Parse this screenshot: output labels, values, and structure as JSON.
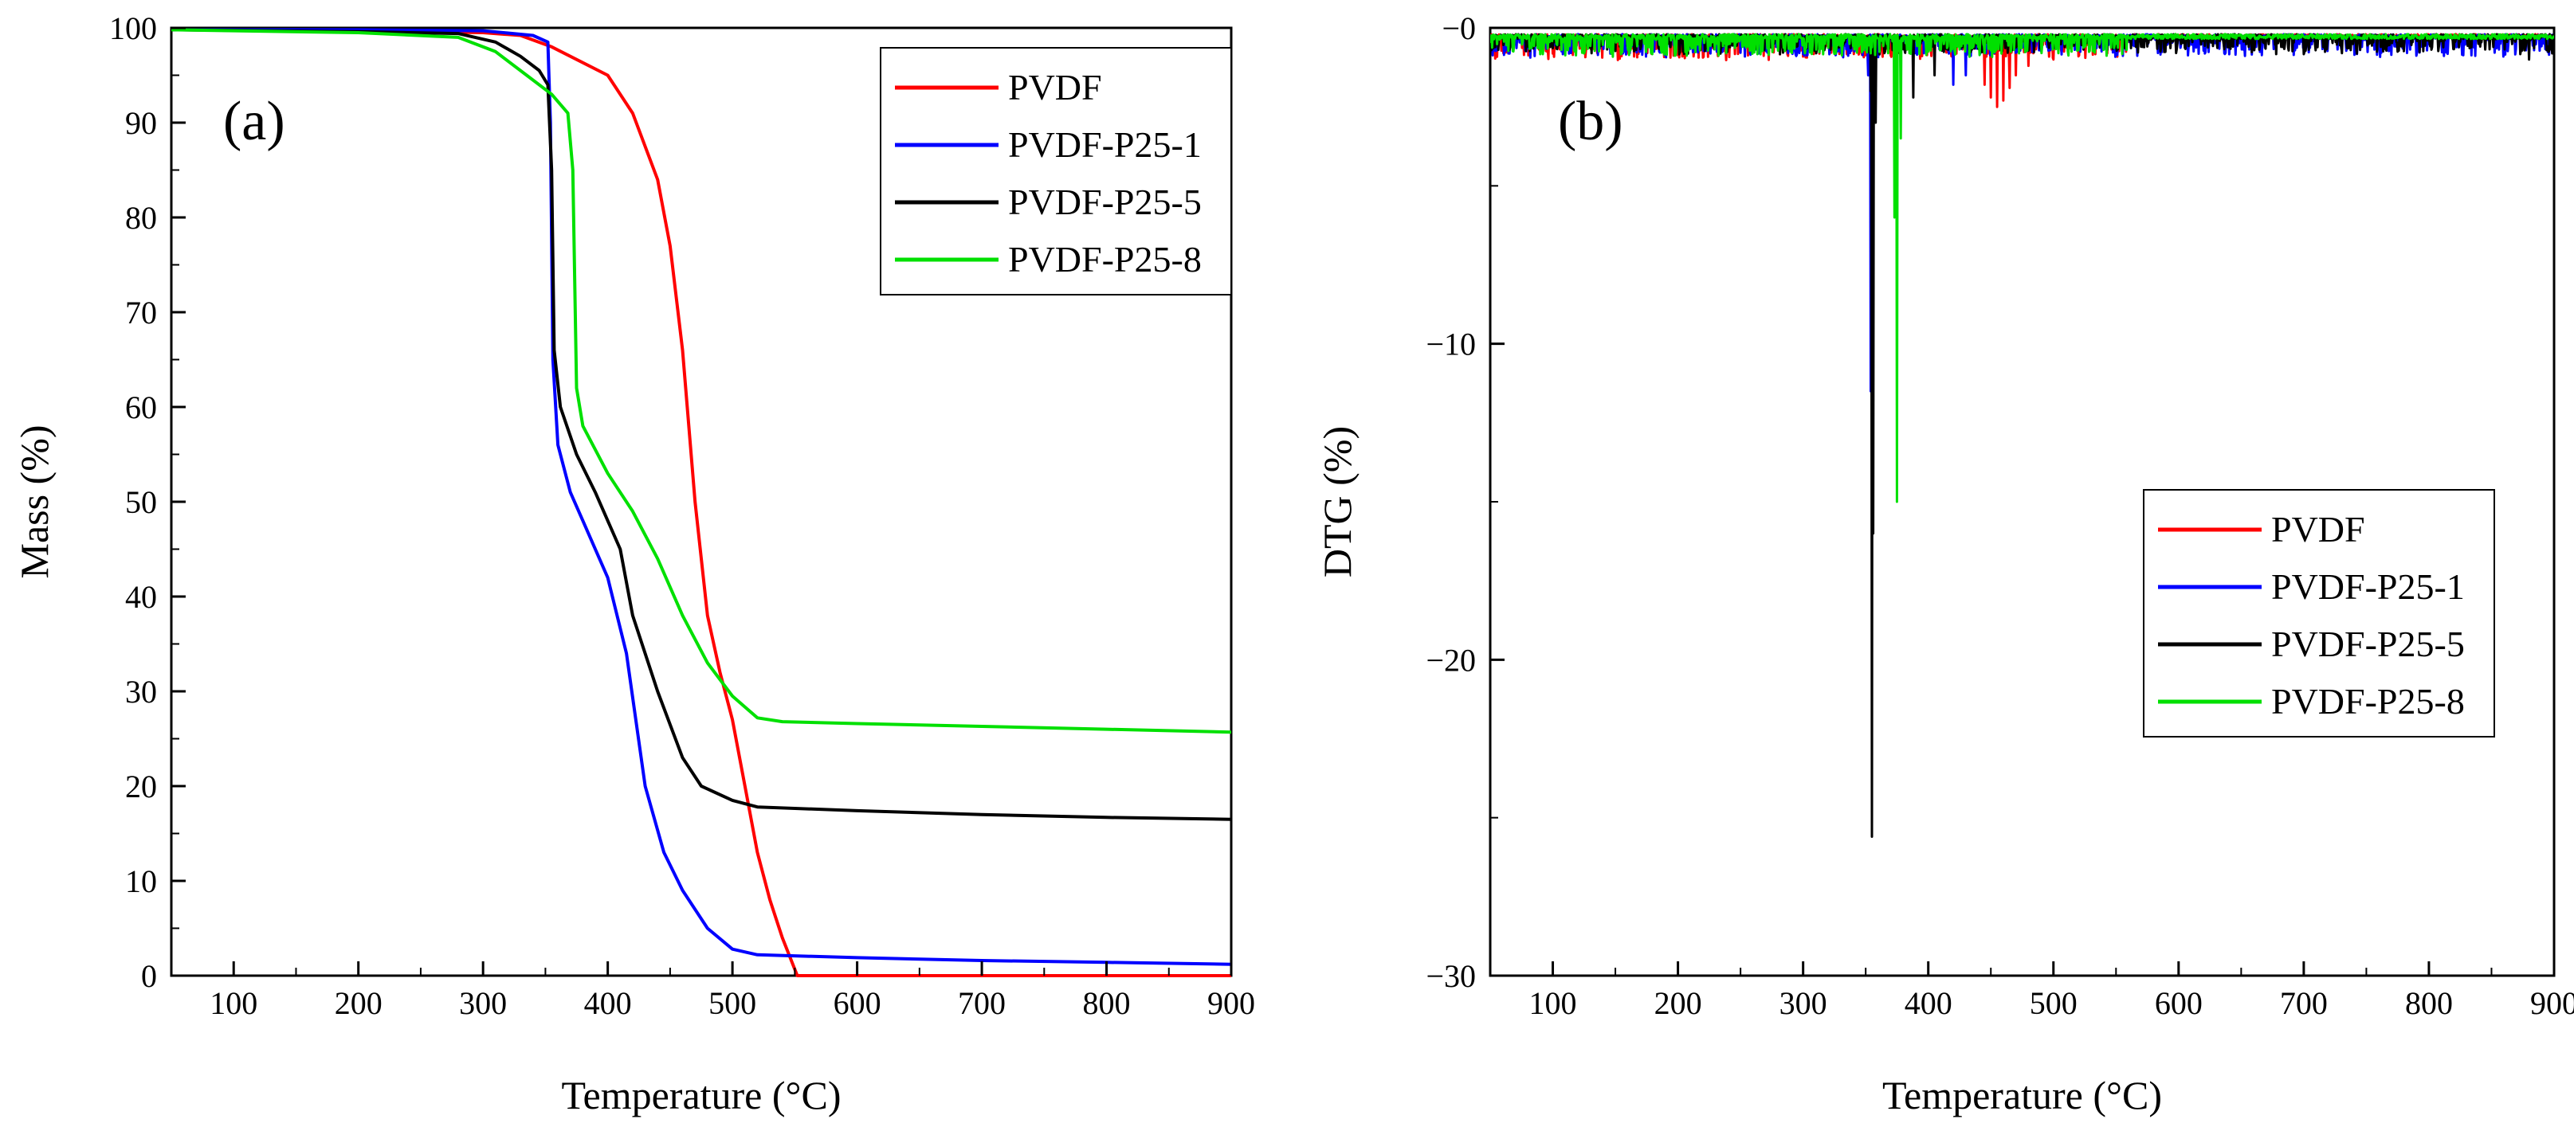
{
  "chart_data": [
    {
      "panel_label": "(a)",
      "type": "line",
      "xlabel": "Temperature (°C)",
      "ylabel": "Mass (%)",
      "xlim": [
        50,
        900
      ],
      "ylim": [
        0,
        100
      ],
      "xticks": [
        "100",
        "200",
        "300",
        "400",
        "500",
        "600",
        "700",
        "800",
        "900"
      ],
      "yticks": [
        "0",
        "10",
        "20",
        "30",
        "40",
        "50",
        "60",
        "70",
        "80",
        "90",
        "100"
      ],
      "legend_position": "top-right",
      "series": [
        {
          "name": "PVDF",
          "color": "#ff0000",
          "points": [
            [
              50,
              99.8
            ],
            [
              200,
              99.7
            ],
            [
              300,
              99.5
            ],
            [
              330,
              99.2
            ],
            [
              355,
              98
            ],
            [
              400,
              95
            ],
            [
              420,
              91
            ],
            [
              440,
              84
            ],
            [
              450,
              77
            ],
            [
              460,
              66
            ],
            [
              470,
              50
            ],
            [
              480,
              38
            ],
            [
              490,
              32
            ],
            [
              500,
              27
            ],
            [
              510,
              20
            ],
            [
              520,
              13
            ],
            [
              530,
              8
            ],
            [
              540,
              4
            ],
            [
              552,
              0
            ],
            [
              560,
              0
            ],
            [
              900,
              0
            ]
          ]
        },
        {
          "name": "PVDF-P25-1",
          "color": "#0000ff",
          "points": [
            [
              50,
              99.8
            ],
            [
              200,
              99.8
            ],
            [
              300,
              99.7
            ],
            [
              340,
              99.2
            ],
            [
              352,
              98.5
            ],
            [
              354,
              90
            ],
            [
              356,
              65
            ],
            [
              360,
              56
            ],
            [
              370,
              51
            ],
            [
              380,
              48
            ],
            [
              400,
              42
            ],
            [
              415,
              34
            ],
            [
              430,
              20
            ],
            [
              445,
              13
            ],
            [
              460,
              9
            ],
            [
              480,
              5
            ],
            [
              500,
              2.8
            ],
            [
              520,
              2.2
            ],
            [
              600,
              1.9
            ],
            [
              700,
              1.6
            ],
            [
              800,
              1.4
            ],
            [
              900,
              1.2
            ]
          ]
        },
        {
          "name": "PVDF-P25-5",
          "color": "#000000",
          "points": [
            [
              50,
              99.8
            ],
            [
              200,
              99.6
            ],
            [
              280,
              99.4
            ],
            [
              310,
              98.5
            ],
            [
              330,
              97
            ],
            [
              345,
              95.5
            ],
            [
              352,
              94
            ],
            [
              355,
              85
            ],
            [
              357,
              66
            ],
            [
              362,
              60
            ],
            [
              375,
              55
            ],
            [
              390,
              51
            ],
            [
              410,
              45
            ],
            [
              420,
              38
            ],
            [
              440,
              30
            ],
            [
              460,
              23
            ],
            [
              475,
              20
            ],
            [
              500,
              18.5
            ],
            [
              520,
              17.8
            ],
            [
              600,
              17.4
            ],
            [
              700,
              17
            ],
            [
              800,
              16.7
            ],
            [
              900,
              16.5
            ]
          ]
        },
        {
          "name": "PVDF-P25-8",
          "color": "#00e000",
          "points": [
            [
              50,
              99.8
            ],
            [
              200,
              99.5
            ],
            [
              280,
              99
            ],
            [
              310,
              97.5
            ],
            [
              335,
              95
            ],
            [
              355,
              93
            ],
            [
              368,
              91
            ],
            [
              372,
              85
            ],
            [
              375,
              62
            ],
            [
              380,
              58
            ],
            [
              400,
              53
            ],
            [
              420,
              49
            ],
            [
              440,
              44
            ],
            [
              460,
              38
            ],
            [
              480,
              33
            ],
            [
              500,
              29.5
            ],
            [
              520,
              27.2
            ],
            [
              540,
              26.8
            ],
            [
              600,
              26.6
            ],
            [
              700,
              26.3
            ],
            [
              800,
              26
            ],
            [
              900,
              25.7
            ]
          ]
        }
      ]
    },
    {
      "panel_label": "(b)",
      "type": "line",
      "xlabel": "Temperature (°C)",
      "ylabel": "DTG (%)",
      "xlim": [
        50,
        900
      ],
      "ylim": [
        -30,
        0
      ],
      "xticks": [
        "100",
        "200",
        "300",
        "400",
        "500",
        "600",
        "700",
        "800",
        "900"
      ],
      "yticks": [
        "−30",
        "−20",
        "−10",
        "−0"
      ],
      "ytick_values": [
        -30,
        -20,
        -10,
        0
      ],
      "legend_position": "center-right",
      "series": [
        {
          "name": "PVDF",
          "color": "#ff0000",
          "noise": [
            50,
            560,
            0.7
          ],
          "peaks": [
            [
              445,
              -1.8
            ],
            [
              450,
              -2.2
            ],
            [
              455,
              -2.5
            ],
            [
              460,
              -2.3
            ],
            [
              465,
              -1.9
            ],
            [
              470,
              -1.5
            ],
            [
              480,
              -1.2
            ],
            [
              500,
              -1.0
            ],
            [
              520,
              -0.9
            ]
          ]
        },
        {
          "name": "PVDF-P25-1",
          "color": "#0000ff",
          "noise": [
            50,
            900,
            0.6
          ],
          "peaks": [
            [
              352,
              -1.5
            ],
            [
              354,
              -11.5
            ],
            [
              356,
              -3
            ],
            [
              420,
              -1.8
            ],
            [
              430,
              -1.5
            ]
          ]
        },
        {
          "name": "PVDF-P25-5",
          "color": "#000000",
          "noise": [
            50,
            900,
            0.5
          ],
          "peaks": [
            [
              354,
              -2
            ],
            [
              355,
              -25.6
            ],
            [
              356,
              -16
            ],
            [
              358,
              -3
            ],
            [
              365,
              -0.8
            ],
            [
              388,
              -2.2
            ],
            [
              405,
              -1.5
            ],
            [
              880,
              -1.0
            ]
          ]
        },
        {
          "name": "PVDF-P25-8",
          "color": "#00e000",
          "noise": [
            50,
            560,
            0.6
          ],
          "peaks": [
            [
              368,
              -0.8
            ],
            [
              373,
              -6
            ],
            [
              375,
              -15
            ],
            [
              378,
              -3.5
            ],
            [
              385,
              -0.8
            ],
            [
              410,
              -0.7
            ],
            [
              445,
              -0.8
            ]
          ]
        }
      ]
    }
  ]
}
